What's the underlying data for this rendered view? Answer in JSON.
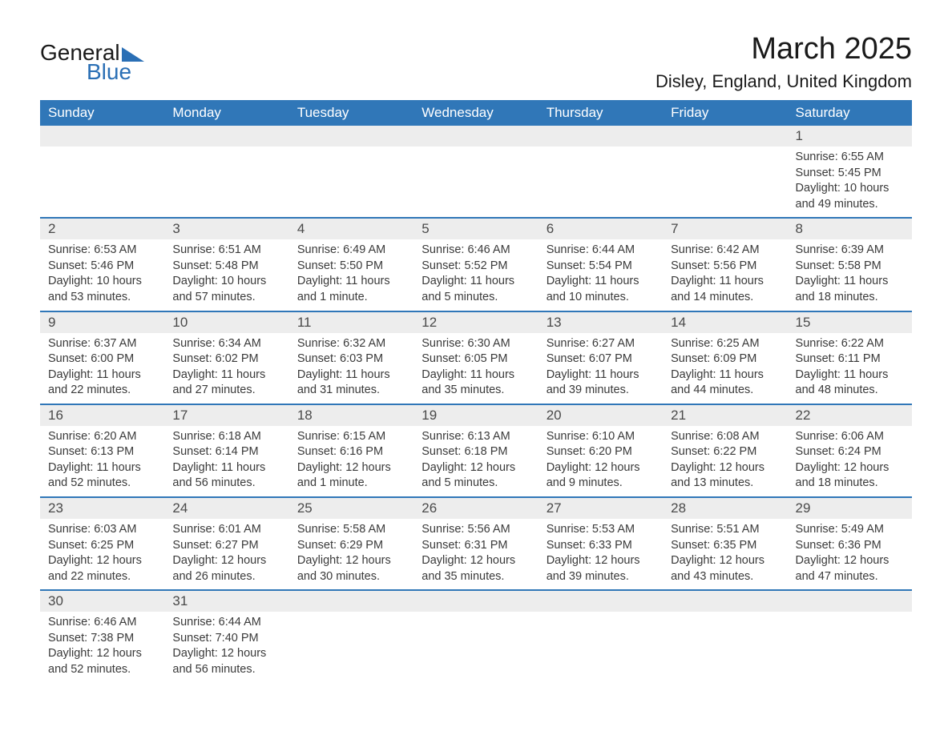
{
  "logo": {
    "part1": "General",
    "part2": "Blue"
  },
  "header": {
    "month_title": "March 2025",
    "location": "Disley, England, United Kingdom"
  },
  "colors": {
    "header_bg": "#3077b8",
    "header_text": "#ffffff",
    "daynum_bg": "#ededed",
    "row_divider": "#3077b8",
    "body_text": "#3a3a3a",
    "title_text": "#1a1a1a"
  },
  "weekdays": [
    "Sunday",
    "Monday",
    "Tuesday",
    "Wednesday",
    "Thursday",
    "Friday",
    "Saturday"
  ],
  "weeks": [
    [
      null,
      null,
      null,
      null,
      null,
      null,
      {
        "d": "1",
        "sr": "Sunrise: 6:55 AM",
        "ss": "Sunset: 5:45 PM",
        "dl1": "Daylight: 10 hours",
        "dl2": "and 49 minutes."
      }
    ],
    [
      {
        "d": "2",
        "sr": "Sunrise: 6:53 AM",
        "ss": "Sunset: 5:46 PM",
        "dl1": "Daylight: 10 hours",
        "dl2": "and 53 minutes."
      },
      {
        "d": "3",
        "sr": "Sunrise: 6:51 AM",
        "ss": "Sunset: 5:48 PM",
        "dl1": "Daylight: 10 hours",
        "dl2": "and 57 minutes."
      },
      {
        "d": "4",
        "sr": "Sunrise: 6:49 AM",
        "ss": "Sunset: 5:50 PM",
        "dl1": "Daylight: 11 hours",
        "dl2": "and 1 minute."
      },
      {
        "d": "5",
        "sr": "Sunrise: 6:46 AM",
        "ss": "Sunset: 5:52 PM",
        "dl1": "Daylight: 11 hours",
        "dl2": "and 5 minutes."
      },
      {
        "d": "6",
        "sr": "Sunrise: 6:44 AM",
        "ss": "Sunset: 5:54 PM",
        "dl1": "Daylight: 11 hours",
        "dl2": "and 10 minutes."
      },
      {
        "d": "7",
        "sr": "Sunrise: 6:42 AM",
        "ss": "Sunset: 5:56 PM",
        "dl1": "Daylight: 11 hours",
        "dl2": "and 14 minutes."
      },
      {
        "d": "8",
        "sr": "Sunrise: 6:39 AM",
        "ss": "Sunset: 5:58 PM",
        "dl1": "Daylight: 11 hours",
        "dl2": "and 18 minutes."
      }
    ],
    [
      {
        "d": "9",
        "sr": "Sunrise: 6:37 AM",
        "ss": "Sunset: 6:00 PM",
        "dl1": "Daylight: 11 hours",
        "dl2": "and 22 minutes."
      },
      {
        "d": "10",
        "sr": "Sunrise: 6:34 AM",
        "ss": "Sunset: 6:02 PM",
        "dl1": "Daylight: 11 hours",
        "dl2": "and 27 minutes."
      },
      {
        "d": "11",
        "sr": "Sunrise: 6:32 AM",
        "ss": "Sunset: 6:03 PM",
        "dl1": "Daylight: 11 hours",
        "dl2": "and 31 minutes."
      },
      {
        "d": "12",
        "sr": "Sunrise: 6:30 AM",
        "ss": "Sunset: 6:05 PM",
        "dl1": "Daylight: 11 hours",
        "dl2": "and 35 minutes."
      },
      {
        "d": "13",
        "sr": "Sunrise: 6:27 AM",
        "ss": "Sunset: 6:07 PM",
        "dl1": "Daylight: 11 hours",
        "dl2": "and 39 minutes."
      },
      {
        "d": "14",
        "sr": "Sunrise: 6:25 AM",
        "ss": "Sunset: 6:09 PM",
        "dl1": "Daylight: 11 hours",
        "dl2": "and 44 minutes."
      },
      {
        "d": "15",
        "sr": "Sunrise: 6:22 AM",
        "ss": "Sunset: 6:11 PM",
        "dl1": "Daylight: 11 hours",
        "dl2": "and 48 minutes."
      }
    ],
    [
      {
        "d": "16",
        "sr": "Sunrise: 6:20 AM",
        "ss": "Sunset: 6:13 PM",
        "dl1": "Daylight: 11 hours",
        "dl2": "and 52 minutes."
      },
      {
        "d": "17",
        "sr": "Sunrise: 6:18 AM",
        "ss": "Sunset: 6:14 PM",
        "dl1": "Daylight: 11 hours",
        "dl2": "and 56 minutes."
      },
      {
        "d": "18",
        "sr": "Sunrise: 6:15 AM",
        "ss": "Sunset: 6:16 PM",
        "dl1": "Daylight: 12 hours",
        "dl2": "and 1 minute."
      },
      {
        "d": "19",
        "sr": "Sunrise: 6:13 AM",
        "ss": "Sunset: 6:18 PM",
        "dl1": "Daylight: 12 hours",
        "dl2": "and 5 minutes."
      },
      {
        "d": "20",
        "sr": "Sunrise: 6:10 AM",
        "ss": "Sunset: 6:20 PM",
        "dl1": "Daylight: 12 hours",
        "dl2": "and 9 minutes."
      },
      {
        "d": "21",
        "sr": "Sunrise: 6:08 AM",
        "ss": "Sunset: 6:22 PM",
        "dl1": "Daylight: 12 hours",
        "dl2": "and 13 minutes."
      },
      {
        "d": "22",
        "sr": "Sunrise: 6:06 AM",
        "ss": "Sunset: 6:24 PM",
        "dl1": "Daylight: 12 hours",
        "dl2": "and 18 minutes."
      }
    ],
    [
      {
        "d": "23",
        "sr": "Sunrise: 6:03 AM",
        "ss": "Sunset: 6:25 PM",
        "dl1": "Daylight: 12 hours",
        "dl2": "and 22 minutes."
      },
      {
        "d": "24",
        "sr": "Sunrise: 6:01 AM",
        "ss": "Sunset: 6:27 PM",
        "dl1": "Daylight: 12 hours",
        "dl2": "and 26 minutes."
      },
      {
        "d": "25",
        "sr": "Sunrise: 5:58 AM",
        "ss": "Sunset: 6:29 PM",
        "dl1": "Daylight: 12 hours",
        "dl2": "and 30 minutes."
      },
      {
        "d": "26",
        "sr": "Sunrise: 5:56 AM",
        "ss": "Sunset: 6:31 PM",
        "dl1": "Daylight: 12 hours",
        "dl2": "and 35 minutes."
      },
      {
        "d": "27",
        "sr": "Sunrise: 5:53 AM",
        "ss": "Sunset: 6:33 PM",
        "dl1": "Daylight: 12 hours",
        "dl2": "and 39 minutes."
      },
      {
        "d": "28",
        "sr": "Sunrise: 5:51 AM",
        "ss": "Sunset: 6:35 PM",
        "dl1": "Daylight: 12 hours",
        "dl2": "and 43 minutes."
      },
      {
        "d": "29",
        "sr": "Sunrise: 5:49 AM",
        "ss": "Sunset: 6:36 PM",
        "dl1": "Daylight: 12 hours",
        "dl2": "and 47 minutes."
      }
    ],
    [
      {
        "d": "30",
        "sr": "Sunrise: 6:46 AM",
        "ss": "Sunset: 7:38 PM",
        "dl1": "Daylight: 12 hours",
        "dl2": "and 52 minutes."
      },
      {
        "d": "31",
        "sr": "Sunrise: 6:44 AM",
        "ss": "Sunset: 7:40 PM",
        "dl1": "Daylight: 12 hours",
        "dl2": "and 56 minutes."
      },
      null,
      null,
      null,
      null,
      null
    ]
  ]
}
